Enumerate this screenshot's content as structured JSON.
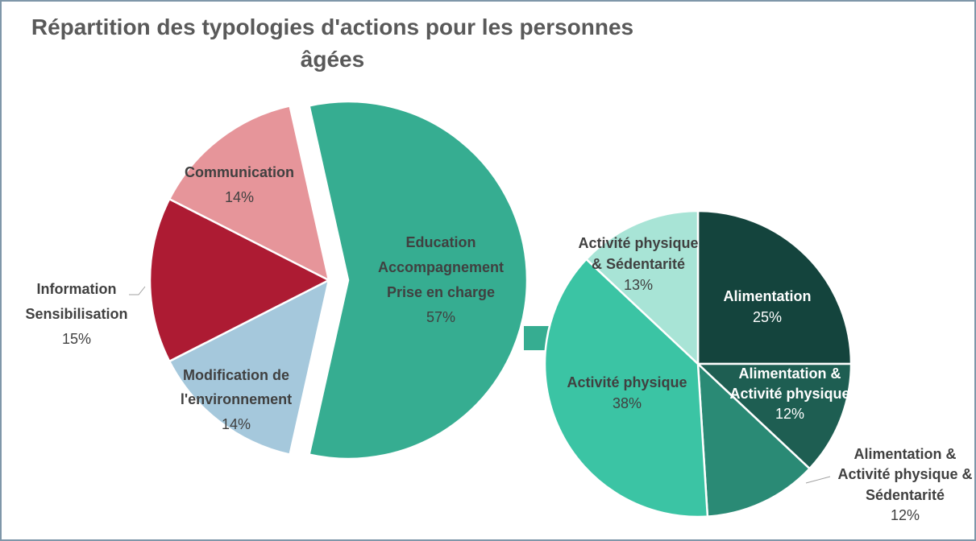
{
  "chart_data": [
    {
      "type": "pie",
      "title": "Répartition des typologies d'actions pour les personnes âgées",
      "categories": [
        "Education\nAccompagnement\nPrise en charge",
        "Modification de\nl'environnement",
        "Information\nSensibilisation",
        "Communication"
      ],
      "values": [
        57,
        14,
        15,
        14
      ],
      "value_labels": [
        "57%",
        "14%",
        "15%",
        "14%"
      ],
      "colors": [
        "#36ad91",
        "#a5c8dc",
        "#ad1b33",
        "#e6959a"
      ]
    },
    {
      "type": "pie",
      "categories": [
        "Alimentation",
        "Alimentation &\nActivité physique",
        "Alimentation &\nActivité physique &\nSédentarité",
        "Activité physique",
        "Activité physique\n& Sédentarité"
      ],
      "values": [
        25,
        12,
        12,
        38,
        13
      ],
      "value_labels": [
        "25%",
        "12%",
        "12%",
        "38%",
        "13%"
      ],
      "colors": [
        "#14443d",
        "#1e5e52",
        "#2a8a75",
        "#3bc4a4",
        "#a8e4d6"
      ]
    }
  ]
}
